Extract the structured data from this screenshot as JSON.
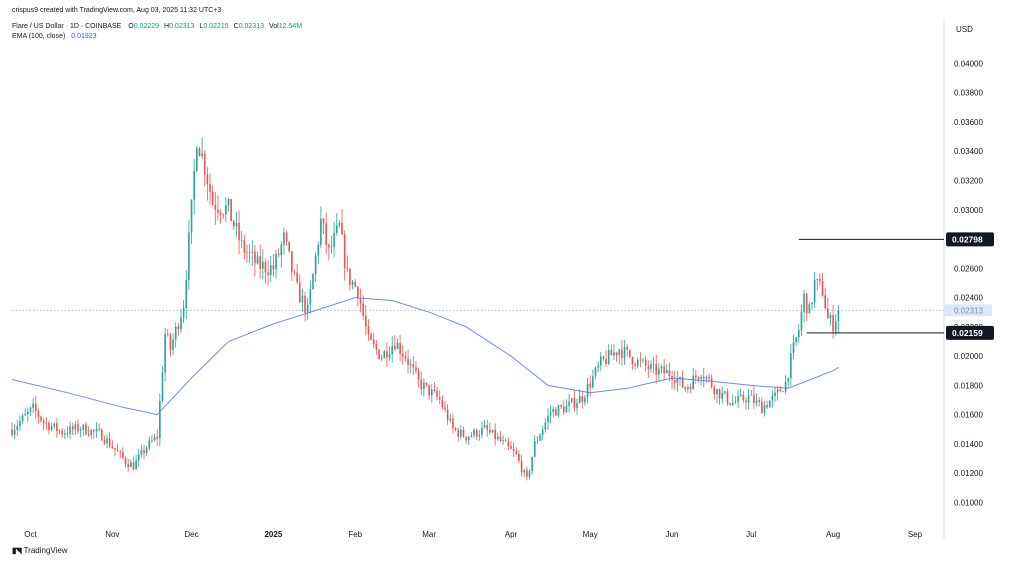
{
  "header": {
    "creator_text": "crispus9 created with TradingView.com, Aug 03, 2025 11:32 UTC+3",
    "symbol_text": "Flare / US Dollar · 1D · COINBASE",
    "ohlc": [
      {
        "key": "O",
        "value": "0.02229"
      },
      {
        "key": "H",
        "value": "0.02313"
      },
      {
        "key": "L",
        "value": "0.02215"
      },
      {
        "key": "C",
        "value": "0.02313"
      },
      {
        "key": "Vol",
        "value": "12.54M"
      }
    ],
    "ema_label": "EMA (100, close)",
    "ema_value": "0.01923"
  },
  "branding": {
    "logo_text": "TradingView"
  },
  "colors": {
    "up": "#26a69a",
    "down": "#ef5350",
    "ema": "#6b8ce8",
    "level_line": "#131722",
    "label_bg": "#131722",
    "label_text": "#ffffff",
    "dotted_line": "#9fb3d9"
  },
  "chart_data": {
    "type": "candlestick",
    "currency": "USD",
    "y_axis_ticks": [
      "0.04000",
      "0.03800",
      "0.03600",
      "0.03400",
      "0.03200",
      "0.03000",
      "0.02800",
      "0.02600",
      "0.02400",
      "0.02200",
      "0.02000",
      "0.01800",
      "0.01600",
      "0.01400",
      "0.01200",
      "0.01000"
    ],
    "ylim": [
      0.0088,
      0.0416
    ],
    "x_axis_labels": [
      "Oct",
      "Nov",
      "Dec",
      "2025",
      "Feb",
      "Mar",
      "Apr",
      "May",
      "Jun",
      "Jul",
      "Aug",
      "Sep"
    ],
    "x_axis_dates": [
      "2024-10-01",
      "2024-11-01",
      "2024-12-01",
      "2025-01-01",
      "2025-02-01",
      "2025-03-01",
      "2025-04-01",
      "2025-05-01",
      "2025-06-01",
      "2025-07-01",
      "2025-08-01",
      "2025-09-01"
    ],
    "xlim": [
      "2024-09-24",
      "2025-09-12"
    ],
    "last_price": 0.02313,
    "levels": [
      {
        "label": "0.02798",
        "value": 0.02798,
        "start_date": "2025-07-19"
      },
      {
        "label": "0.02159",
        "value": 0.02159,
        "start_date": "2025-07-22"
      }
    ],
    "price_anchors": [
      {
        "date": "2024-09-24",
        "close": 0.015
      },
      {
        "date": "2024-10-02",
        "close": 0.0164
      },
      {
        "date": "2024-10-06",
        "close": 0.0155
      },
      {
        "date": "2024-10-13",
        "close": 0.0148
      },
      {
        "date": "2024-10-20",
        "close": 0.0151
      },
      {
        "date": "2024-10-28",
        "close": 0.0146
      },
      {
        "date": "2024-11-06",
        "close": 0.0128
      },
      {
        "date": "2024-11-09",
        "close": 0.0125
      },
      {
        "date": "2024-11-14",
        "close": 0.0138
      },
      {
        "date": "2024-11-18",
        "close": 0.0145
      },
      {
        "date": "2024-11-21",
        "close": 0.0215
      },
      {
        "date": "2024-11-23",
        "close": 0.0205
      },
      {
        "date": "2024-11-28",
        "close": 0.0236
      },
      {
        "date": "2024-12-01",
        "close": 0.03
      },
      {
        "date": "2024-12-03",
        "close": 0.035
      },
      {
        "date": "2024-12-06",
        "close": 0.033
      },
      {
        "date": "2024-12-09",
        "close": 0.0305
      },
      {
        "date": "2024-12-15",
        "close": 0.03
      },
      {
        "date": "2024-12-20",
        "close": 0.0275
      },
      {
        "date": "2024-12-26",
        "close": 0.0262
      },
      {
        "date": "2025-01-01",
        "close": 0.026
      },
      {
        "date": "2025-01-05",
        "close": 0.028
      },
      {
        "date": "2025-01-10",
        "close": 0.0245
      },
      {
        "date": "2025-01-14",
        "close": 0.023
      },
      {
        "date": "2025-01-19",
        "close": 0.0292
      },
      {
        "date": "2025-01-22",
        "close": 0.027
      },
      {
        "date": "2025-01-26",
        "close": 0.0288
      },
      {
        "date": "2025-01-29",
        "close": 0.0255
      },
      {
        "date": "2025-02-02",
        "close": 0.0245
      },
      {
        "date": "2025-02-06",
        "close": 0.021
      },
      {
        "date": "2025-02-11",
        "close": 0.02
      },
      {
        "date": "2025-02-16",
        "close": 0.021
      },
      {
        "date": "2025-02-20",
        "close": 0.02
      },
      {
        "date": "2025-02-25",
        "close": 0.0182
      },
      {
        "date": "2025-03-05",
        "close": 0.017
      },
      {
        "date": "2025-03-10",
        "close": 0.015
      },
      {
        "date": "2025-03-15",
        "close": 0.0145
      },
      {
        "date": "2025-03-22",
        "close": 0.015
      },
      {
        "date": "2025-03-28",
        "close": 0.0142
      },
      {
        "date": "2025-04-03",
        "close": 0.0132
      },
      {
        "date": "2025-04-07",
        "close": 0.0115
      },
      {
        "date": "2025-04-10",
        "close": 0.014
      },
      {
        "date": "2025-04-16",
        "close": 0.0162
      },
      {
        "date": "2025-04-22",
        "close": 0.0165
      },
      {
        "date": "2025-04-28",
        "close": 0.0172
      },
      {
        "date": "2025-05-05",
        "close": 0.0195
      },
      {
        "date": "2025-05-12",
        "close": 0.0205
      },
      {
        "date": "2025-05-18",
        "close": 0.0197
      },
      {
        "date": "2025-05-25",
        "close": 0.019
      },
      {
        "date": "2025-06-01",
        "close": 0.0188
      },
      {
        "date": "2025-06-06",
        "close": 0.0178
      },
      {
        "date": "2025-06-12",
        "close": 0.019
      },
      {
        "date": "2025-06-18",
        "close": 0.0176
      },
      {
        "date": "2025-06-24",
        "close": 0.0168
      },
      {
        "date": "2025-06-30",
        "close": 0.0172
      },
      {
        "date": "2025-07-05",
        "close": 0.0165
      },
      {
        "date": "2025-07-10",
        "close": 0.0172
      },
      {
        "date": "2025-07-14",
        "close": 0.0182
      },
      {
        "date": "2025-07-17",
        "close": 0.0205
      },
      {
        "date": "2025-07-19",
        "close": 0.0218
      },
      {
        "date": "2025-07-21",
        "close": 0.024
      },
      {
        "date": "2025-07-23",
        "close": 0.023
      },
      {
        "date": "2025-07-25",
        "close": 0.025
      },
      {
        "date": "2025-07-28",
        "close": 0.0245
      },
      {
        "date": "2025-07-30",
        "close": 0.0225
      },
      {
        "date": "2025-08-01",
        "close": 0.0222
      },
      {
        "date": "2025-08-03",
        "close": 0.02313
      }
    ],
    "ema_100": [
      {
        "date": "2024-09-24",
        "value": 0.0184
      },
      {
        "date": "2024-10-15",
        "value": 0.0175
      },
      {
        "date": "2024-11-05",
        "value": 0.0165
      },
      {
        "date": "2024-11-18",
        "value": 0.016
      },
      {
        "date": "2024-12-01",
        "value": 0.0185
      },
      {
        "date": "2024-12-15",
        "value": 0.021
      },
      {
        "date": "2025-01-01",
        "value": 0.0222
      },
      {
        "date": "2025-01-15",
        "value": 0.023
      },
      {
        "date": "2025-02-01",
        "value": 0.024
      },
      {
        "date": "2025-02-15",
        "value": 0.0238
      },
      {
        "date": "2025-03-01",
        "value": 0.023
      },
      {
        "date": "2025-03-15",
        "value": 0.022
      },
      {
        "date": "2025-04-01",
        "value": 0.02
      },
      {
        "date": "2025-04-15",
        "value": 0.018
      },
      {
        "date": "2025-05-01",
        "value": 0.0175
      },
      {
        "date": "2025-05-15",
        "value": 0.0178
      },
      {
        "date": "2025-06-01",
        "value": 0.0185
      },
      {
        "date": "2025-06-15",
        "value": 0.0183
      },
      {
        "date": "2025-07-01",
        "value": 0.018
      },
      {
        "date": "2025-07-15",
        "value": 0.0178
      },
      {
        "date": "2025-08-01",
        "value": 0.019
      },
      {
        "date": "2025-08-03",
        "value": 0.01923
      }
    ]
  }
}
